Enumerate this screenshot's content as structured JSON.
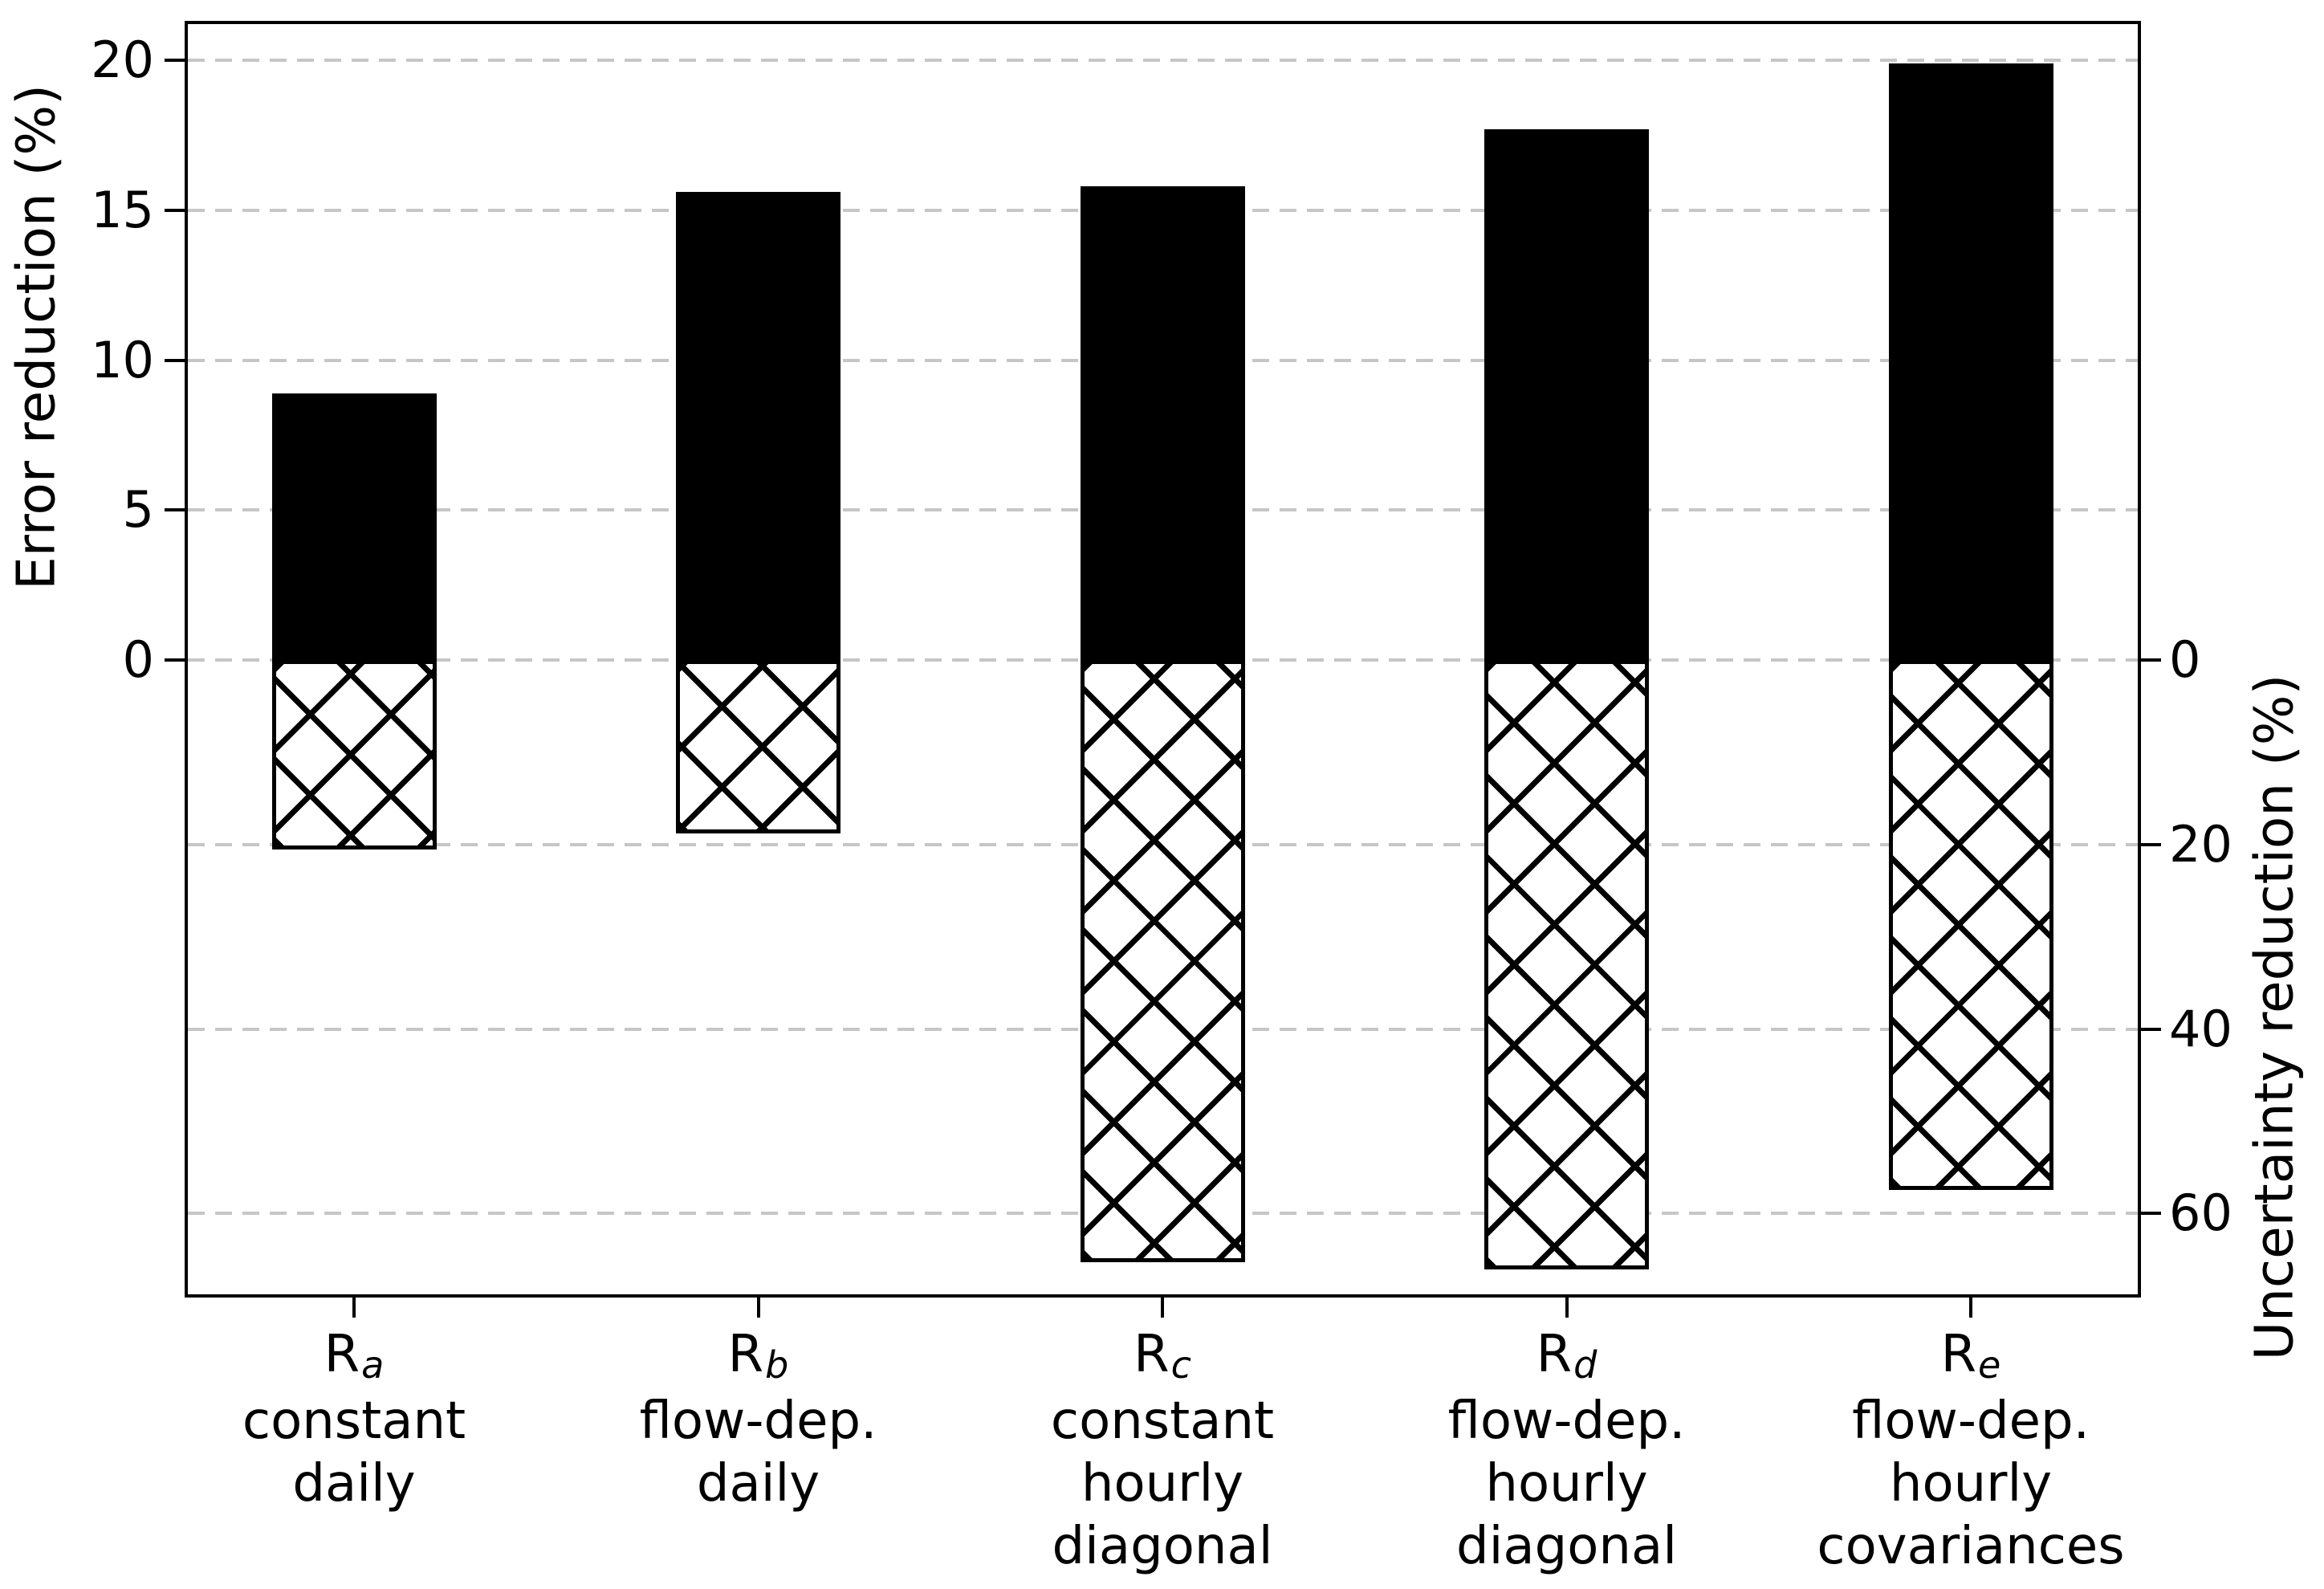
{
  "figure": {
    "background": "#ffffff"
  },
  "left_axis": {
    "label": "Error reduction (%)",
    "tick_labels": [
      "20",
      "15",
      "10",
      "5",
      "0"
    ]
  },
  "right_axis": {
    "label": "Uncertainty reduction (%)",
    "tick_labels": [
      "0",
      "20",
      "40",
      "60"
    ]
  },
  "chart_data": {
    "type": "bar",
    "orientation": "vertical-diverging",
    "title": "",
    "grid": "horizontal-dashed",
    "legend": "none",
    "categories": [
      {
        "symbol": "R",
        "subscript": "a",
        "descriptor_lines": [
          "constant",
          "daily"
        ]
      },
      {
        "symbol": "R",
        "subscript": "b",
        "descriptor_lines": [
          "flow-dep.",
          "daily"
        ]
      },
      {
        "symbol": "R",
        "subscript": "c",
        "descriptor_lines": [
          "constant",
          "hourly",
          "diagonal"
        ]
      },
      {
        "symbol": "R",
        "subscript": "d",
        "descriptor_lines": [
          "flow-dep.",
          "hourly",
          "diagonal"
        ]
      },
      {
        "symbol": "R",
        "subscript": "e",
        "descriptor_lines": [
          "flow-dep.",
          "hourly",
          "covariances"
        ]
      }
    ],
    "series": [
      {
        "name": "Error reduction (%)",
        "axis": "left",
        "direction": "up",
        "fill": "solid-black",
        "values": [
          8.9,
          15.6,
          15.8,
          17.7,
          19.9
        ]
      },
      {
        "name": "Uncertainty reduction (%)",
        "axis": "right",
        "direction": "down",
        "fill": "white-crosshatch",
        "values": [
          20.5,
          18.8,
          65.3,
          66.1,
          57.4
        ]
      }
    ],
    "left_axis_ticks": [
      20,
      15,
      10,
      5,
      0
    ],
    "right_axis_ticks": [
      0,
      20,
      40,
      60
    ],
    "left_axis_range_shown": [
      -21.2,
      21.3
    ],
    "right_axis_range_shown_downward": [
      -69.3,
      69.1
    ],
    "colors": {
      "bar_fill": "#000000",
      "hatch_bar_fill": "#ffffff",
      "hatch_line": "#000000",
      "grid_line": "#c6c6c6",
      "axis": "#000000",
      "background": "#ffffff"
    }
  }
}
